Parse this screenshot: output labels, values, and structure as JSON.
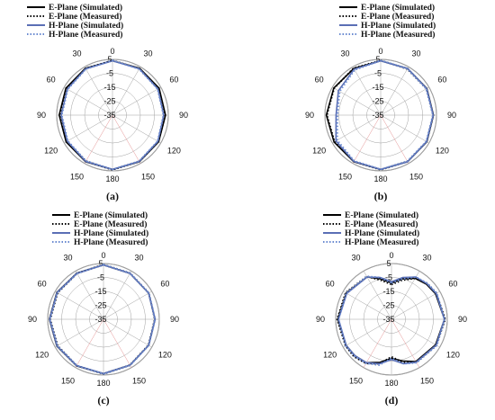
{
  "colors": {
    "e_plane": "#000000",
    "h_plane": "#5b6fb5",
    "h_measured": "#6a8ad0",
    "grid": "#a0a0a0",
    "spoke_accent": "#e49393"
  },
  "legend_entries": [
    "E-Plane (Simulated)",
    "E-Plane (Measured)",
    "H-Plane (Simulated)",
    "H-Plane (Measured)"
  ],
  "chart_data": [
    {
      "type": "polar",
      "caption": "(a)",
      "angle_tick_labels": [
        "0",
        "30",
        "60",
        "90",
        "120",
        "150",
        "180",
        "150",
        "120",
        "90",
        "60",
        "30"
      ],
      "radial_tick_labels": [
        "5",
        "-5",
        "-15",
        "-25",
        "-35"
      ],
      "rlim": [
        -35,
        5
      ],
      "grid": true,
      "legend_position": "top-left",
      "series": [
        {
          "name": "E-Plane (Simulated)",
          "style": "solid",
          "color": "#000000",
          "theta": [
            0,
            30,
            60,
            90,
            120,
            150,
            180,
            210,
            240,
            270,
            300,
            330
          ],
          "r": [
            4,
            3.8,
            3.6,
            3,
            3.2,
            3.6,
            4,
            3.6,
            3.4,
            3.2,
            3.6,
            3.8
          ]
        },
        {
          "name": "E-Plane (Measured)",
          "style": "dotted",
          "color": "#000000",
          "theta": [
            0,
            30,
            60,
            90,
            120,
            150,
            180,
            210,
            240,
            270,
            300,
            330
          ],
          "r": [
            4.2,
            3.6,
            3.2,
            2.8,
            3,
            3.4,
            4.2,
            3.2,
            2.8,
            2.8,
            3.2,
            3.6
          ]
        },
        {
          "name": "H-Plane (Simulated)",
          "style": "solid",
          "color": "#5b6fb5",
          "theta": [
            0,
            30,
            60,
            90,
            120,
            150,
            180,
            210,
            240,
            270,
            300,
            330
          ],
          "r": [
            4,
            3.4,
            2.6,
            1.8,
            2.6,
            3.4,
            4,
            3.4,
            2.4,
            1.8,
            2.4,
            3.4
          ]
        },
        {
          "name": "H-Plane (Measured)",
          "style": "dotted",
          "color": "#6a8ad0",
          "theta": [
            0,
            30,
            60,
            90,
            120,
            150,
            180,
            210,
            240,
            270,
            300,
            330
          ],
          "r": [
            4.2,
            3.2,
            2.4,
            1.5,
            2.4,
            3.2,
            4,
            3,
            2,
            1.4,
            2,
            3.2
          ]
        }
      ]
    },
    {
      "type": "polar",
      "caption": "(b)",
      "angle_tick_labels": [
        "0",
        "30",
        "60",
        "90",
        "120",
        "150",
        "180",
        "150",
        "120",
        "90",
        "60",
        "30"
      ],
      "radial_tick_labels": [
        "5",
        "-5",
        "-15",
        "-25",
        "-35"
      ],
      "rlim": [
        -35,
        5
      ],
      "grid": true,
      "legend_position": "top-right",
      "series": [
        {
          "name": "E-Plane (Simulated)",
          "style": "solid",
          "color": "#000000",
          "theta": [
            0,
            30,
            60,
            90,
            120,
            150,
            180,
            210,
            240,
            270,
            300,
            330
          ],
          "r": [
            4,
            3.6,
            3.2,
            2.8,
            3.2,
            3.6,
            4,
            3.6,
            3.6,
            4,
            3.8,
            3.6
          ]
        },
        {
          "name": "E-Plane (Measured)",
          "style": "dotted",
          "color": "#000000",
          "theta": [
            0,
            30,
            60,
            90,
            120,
            150,
            180,
            210,
            240,
            270,
            300,
            330
          ],
          "r": [
            4.2,
            3.2,
            2.8,
            2.6,
            3,
            3.4,
            4.2,
            3.4,
            3.2,
            3.6,
            3.6,
            3.8
          ]
        },
        {
          "name": "H-Plane (Simulated)",
          "style": "solid",
          "color": "#5b6fb5",
          "theta": [
            0,
            30,
            60,
            90,
            120,
            150,
            180,
            210,
            240,
            270,
            300,
            330
          ],
          "r": [
            4,
            3.6,
            3,
            2.6,
            3,
            3.6,
            4,
            3.4,
            2,
            -3,
            0,
            3
          ]
        },
        {
          "name": "H-Plane (Measured)",
          "style": "dotted",
          "color": "#6a8ad0",
          "theta": [
            0,
            30,
            60,
            90,
            120,
            150,
            180,
            210,
            240,
            270,
            300,
            330
          ],
          "r": [
            4.2,
            3.4,
            2.8,
            2.4,
            2.8,
            3.2,
            4,
            3,
            1,
            -4,
            -1,
            2.4
          ]
        }
      ]
    },
    {
      "type": "polar",
      "caption": "(c)",
      "angle_tick_labels": [
        "0",
        "30",
        "60",
        "90",
        "120",
        "150",
        "180",
        "150",
        "120",
        "90",
        "60",
        "30"
      ],
      "radial_tick_labels": [
        "5",
        "-5",
        "-15",
        "-25",
        "-35"
      ],
      "rlim": [
        -35,
        5
      ],
      "grid": true,
      "legend_position": "top-right",
      "series": [
        {
          "name": "E-Plane (Simulated)",
          "style": "solid",
          "color": "#000000",
          "theta": [
            0,
            30,
            60,
            90,
            120,
            150,
            180,
            210,
            240,
            270,
            300,
            330
          ],
          "r": [
            4,
            3,
            2.4,
            2,
            2.4,
            3,
            4,
            3.6,
            3.6,
            3.8,
            3.6,
            3.2
          ]
        },
        {
          "name": "E-Plane (Measured)",
          "style": "dotted",
          "color": "#000000",
          "theta": [
            0,
            30,
            60,
            90,
            120,
            150,
            180,
            210,
            240,
            270,
            300,
            330
          ],
          "r": [
            4.2,
            3.2,
            2.6,
            1.8,
            2.2,
            3,
            4.2,
            3.4,
            3,
            3.2,
            3,
            3
          ]
        },
        {
          "name": "H-Plane (Simulated)",
          "style": "solid",
          "color": "#5b6fb5",
          "theta": [
            0,
            30,
            60,
            90,
            120,
            150,
            180,
            210,
            240,
            270,
            300,
            330
          ],
          "r": [
            4,
            3,
            2.4,
            2,
            2.4,
            3,
            4,
            3.4,
            3.4,
            3.6,
            3.4,
            3
          ]
        },
        {
          "name": "H-Plane (Measured)",
          "style": "dotted",
          "color": "#6a8ad0",
          "theta": [
            0,
            30,
            60,
            90,
            120,
            150,
            180,
            210,
            240,
            270,
            300,
            330
          ],
          "r": [
            4.2,
            3.2,
            2.6,
            2,
            2.4,
            3.2,
            4.2,
            3.4,
            3.2,
            3.4,
            3.2,
            3
          ]
        }
      ]
    },
    {
      "type": "polar",
      "caption": "(d)",
      "angle_tick_labels": [
        "0",
        "30",
        "60",
        "90",
        "120",
        "150",
        "180",
        "150",
        "120",
        "90",
        "60",
        "30"
      ],
      "radial_tick_labels": [
        "5",
        "-5",
        "-15",
        "-25",
        "-35"
      ],
      "rlim": [
        -35,
        5
      ],
      "grid": true,
      "legend_position": "top-right",
      "series": [
        {
          "name": "E-Plane (Simulated)",
          "style": "solid",
          "color": "#000000",
          "theta": [
            0,
            15,
            30,
            45,
            60,
            90,
            120,
            150,
            165,
            180,
            195,
            210,
            225,
            240,
            270,
            300,
            330,
            345
          ],
          "r": [
            -9,
            -5,
            -1,
            0.5,
            1.5,
            3,
            1.5,
            0,
            -4,
            -7,
            -3,
            1,
            2,
            2.5,
            3.5,
            2.5,
            0,
            -5
          ]
        },
        {
          "name": "E-Plane (Measured)",
          "style": "dotted",
          "color": "#000000",
          "theta": [
            0,
            15,
            30,
            45,
            60,
            90,
            120,
            150,
            165,
            180,
            195,
            210,
            225,
            240,
            270,
            300,
            330,
            345
          ],
          "r": [
            -10,
            -6,
            -1,
            1,
            2,
            3.5,
            2,
            0.5,
            -3,
            -8,
            -2,
            1.5,
            3,
            3,
            4,
            3,
            0.5,
            -6
          ]
        },
        {
          "name": "H-Plane (Simulated)",
          "style": "solid",
          "color": "#5b6fb5",
          "theta": [
            0,
            15,
            30,
            45,
            60,
            90,
            120,
            150,
            165,
            180,
            195,
            210,
            225,
            240,
            270,
            300,
            330,
            345
          ],
          "r": [
            -8,
            -4,
            0,
            1,
            2,
            3,
            2,
            0.5,
            -2,
            -6,
            -2,
            1,
            2,
            2.5,
            3,
            2,
            0,
            -4
          ]
        },
        {
          "name": "H-Plane (Measured)",
          "style": "dotted",
          "color": "#6a8ad0",
          "theta": [
            0,
            15,
            30,
            45,
            60,
            90,
            120,
            150,
            165,
            180,
            195,
            210,
            225,
            240,
            270,
            300,
            330,
            345
          ],
          "r": [
            -9,
            -5,
            0,
            1.5,
            2.5,
            3,
            2.5,
            1,
            -2,
            -7,
            -1,
            1.5,
            2.5,
            3,
            3,
            2.5,
            0.5,
            -4
          ]
        }
      ]
    }
  ]
}
